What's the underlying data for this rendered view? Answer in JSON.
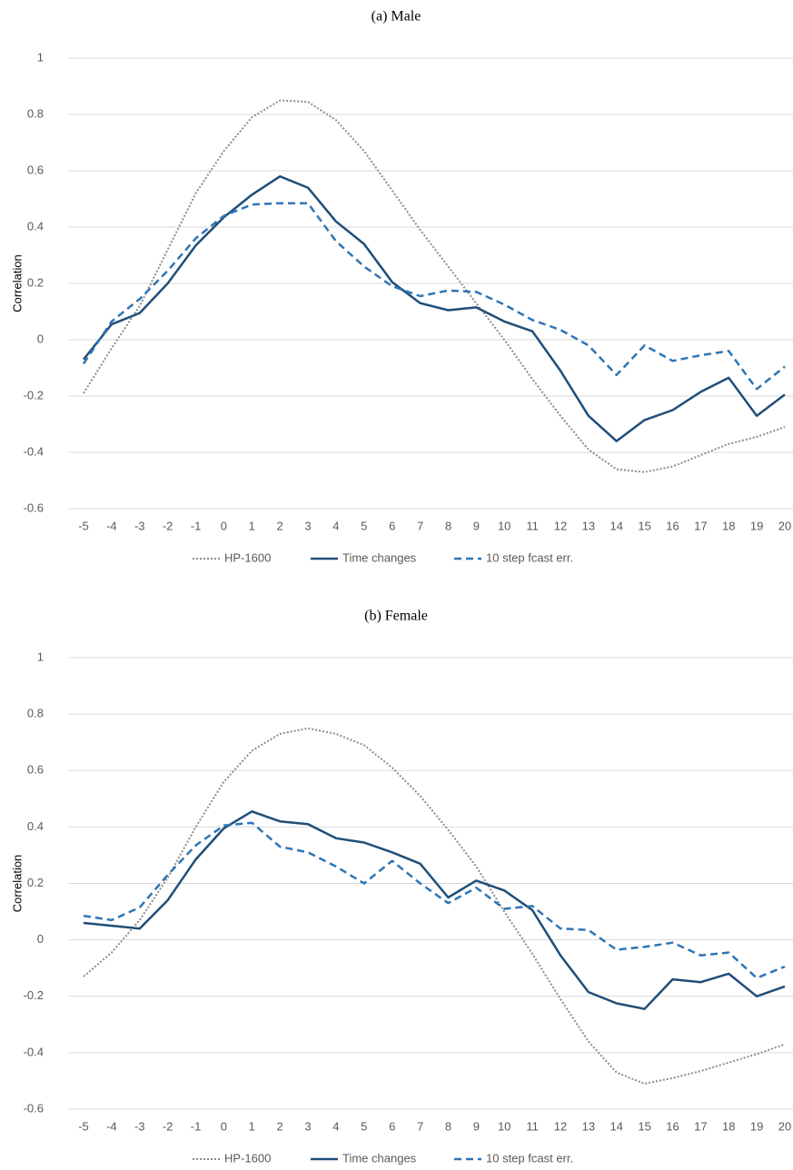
{
  "chart_data": [
    {
      "type": "line",
      "title": "(a) Male",
      "ylabel": "Correlation",
      "x": [
        -5,
        -4,
        -3,
        -2,
        -1,
        0,
        1,
        2,
        3,
        4,
        5,
        6,
        7,
        8,
        9,
        10,
        11,
        12,
        13,
        14,
        15,
        16,
        17,
        18,
        19,
        20
      ],
      "xlim": [
        -5,
        20
      ],
      "ylim": [
        -0.6,
        1
      ],
      "yticks": [
        -0.6,
        -0.4,
        -0.2,
        0,
        0.2,
        0.4,
        0.6,
        0.8,
        1
      ],
      "grid": true,
      "series": [
        {
          "name": "HP-1600",
          "color": "#8c8c8c",
          "style": "dotted",
          "values": [
            -0.19,
            -0.03,
            0.12,
            0.32,
            0.52,
            0.67,
            0.79,
            0.85,
            0.845,
            0.78,
            0.67,
            0.53,
            0.39,
            0.26,
            0.13,
            0.0,
            -0.14,
            -0.27,
            -0.39,
            -0.46,
            -0.47,
            -0.45,
            -0.41,
            -0.37,
            -0.345,
            -0.31
          ]
        },
        {
          "name": "Time changes",
          "color": "#1f4e79",
          "style": "solid",
          "values": [
            -0.07,
            0.055,
            0.095,
            0.2,
            0.335,
            0.435,
            0.515,
            0.58,
            0.54,
            0.42,
            0.34,
            0.205,
            0.13,
            0.105,
            0.115,
            0.065,
            0.03,
            -0.11,
            -0.27,
            -0.36,
            -0.285,
            -0.25,
            -0.185,
            -0.135,
            -0.27,
            -0.195
          ]
        },
        {
          "name": "10 step fcast err.",
          "color": "#2e75b6",
          "style": "dashed",
          "values": [
            -0.085,
            0.065,
            0.145,
            0.245,
            0.36,
            0.44,
            0.48,
            0.485,
            0.485,
            0.35,
            0.26,
            0.19,
            0.155,
            0.175,
            0.17,
            0.125,
            0.07,
            0.035,
            -0.02,
            -0.125,
            -0.02,
            -0.075,
            -0.055,
            -0.04,
            -0.175,
            -0.095
          ]
        }
      ]
    },
    {
      "type": "line",
      "title": "(b) Female",
      "ylabel": "Correlation",
      "x": [
        -5,
        -4,
        -3,
        -2,
        -1,
        0,
        1,
        2,
        3,
        4,
        5,
        6,
        7,
        8,
        9,
        10,
        11,
        12,
        13,
        14,
        15,
        16,
        17,
        18,
        19,
        20
      ],
      "xlim": [
        -5,
        20
      ],
      "ylim": [
        -0.6,
        1
      ],
      "yticks": [
        -0.6,
        -0.4,
        -0.2,
        0,
        0.2,
        0.4,
        0.6,
        0.8,
        1
      ],
      "grid": true,
      "series": [
        {
          "name": "HP-1600",
          "color": "#8c8c8c",
          "style": "dotted",
          "values": [
            -0.13,
            -0.045,
            0.07,
            0.22,
            0.4,
            0.56,
            0.67,
            0.73,
            0.75,
            0.73,
            0.69,
            0.61,
            0.51,
            0.39,
            0.26,
            0.1,
            -0.05,
            -0.21,
            -0.36,
            -0.47,
            -0.51,
            -0.49,
            -0.465,
            -0.435,
            -0.405,
            -0.37
          ]
        },
        {
          "name": "Time changes",
          "color": "#1f4e79",
          "style": "solid",
          "values": [
            0.06,
            0.05,
            0.04,
            0.14,
            0.285,
            0.395,
            0.455,
            0.42,
            0.41,
            0.36,
            0.345,
            0.31,
            0.27,
            0.15,
            0.21,
            0.175,
            0.105,
            -0.055,
            -0.185,
            -0.225,
            -0.245,
            -0.14,
            -0.15,
            -0.12,
            -0.2,
            -0.165
          ]
        },
        {
          "name": "10 step fcast err.",
          "color": "#2e75b6",
          "style": "dashed",
          "values": [
            0.085,
            0.07,
            0.115,
            0.23,
            0.335,
            0.405,
            0.415,
            0.33,
            0.31,
            0.26,
            0.2,
            0.28,
            0.2,
            0.13,
            0.185,
            0.11,
            0.12,
            0.04,
            0.035,
            -0.035,
            -0.025,
            -0.01,
            -0.055,
            -0.045,
            -0.135,
            -0.095
          ]
        }
      ]
    }
  ]
}
